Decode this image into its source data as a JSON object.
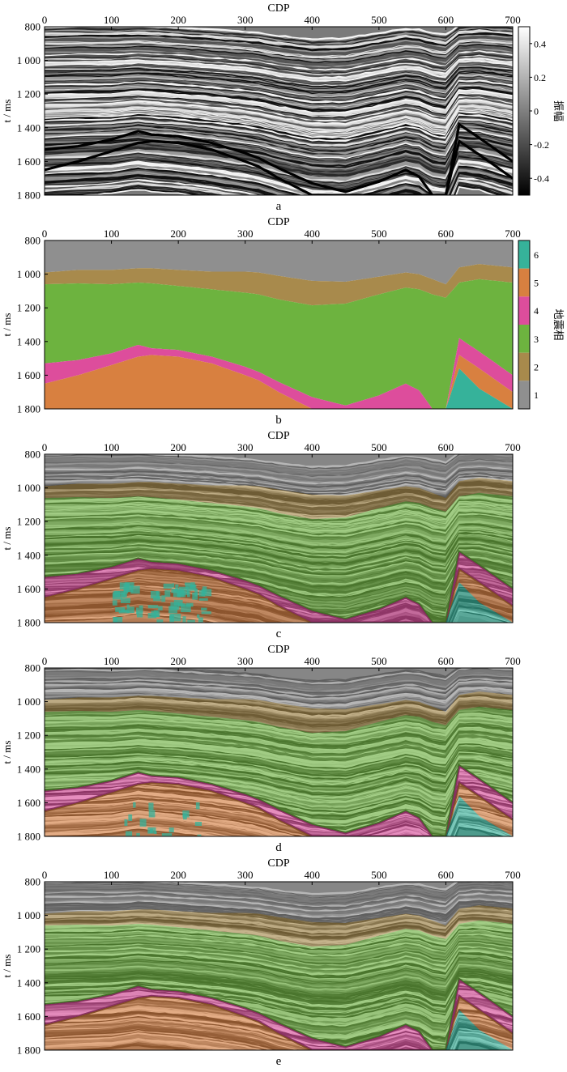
{
  "chart_data": [
    {
      "id": "a",
      "type": "heatmap",
      "kind": "seismic",
      "xlabel": "CDP",
      "ylabel": "t / ms",
      "caption": "a",
      "xlim": [
        0,
        700
      ],
      "ylim": [
        800,
        1800
      ],
      "xticks": [
        "0",
        "100",
        "200",
        "300",
        "400",
        "500",
        "600",
        "700"
      ],
      "yticks": [
        "800",
        "1 000",
        "1 200",
        "1 400",
        "1 600",
        "1 800"
      ],
      "colorbar": {
        "label": "振幅",
        "range": [
          -0.5,
          0.5
        ],
        "ticks": [
          "0.4",
          "0.2",
          "0",
          "-0.2",
          "-0.4"
        ]
      }
    },
    {
      "id": "b",
      "type": "heatmap",
      "kind": "facies",
      "xlabel": "CDP",
      "ylabel": "t / ms",
      "caption": "b",
      "xlim": [
        0,
        700
      ],
      "ylim": [
        800,
        1800
      ],
      "xticks": [
        "0",
        "100",
        "200",
        "300",
        "400",
        "500",
        "600",
        "700"
      ],
      "yticks": [
        "800",
        "1 000",
        "1 200",
        "1 400",
        "1 600",
        "1 800"
      ],
      "colorbar": {
        "label": "地震相",
        "ticks": [
          "6",
          "5",
          "4",
          "3",
          "2",
          "1"
        ]
      }
    },
    {
      "id": "c",
      "type": "heatmap",
      "kind": "overlay",
      "noise": "high",
      "xlabel": "CDP",
      "ylabel": "t / ms",
      "caption": "c",
      "xlim": [
        0,
        700
      ],
      "ylim": [
        800,
        1800
      ],
      "xticks": [
        "0",
        "100",
        "200",
        "300",
        "400",
        "500",
        "600",
        "700"
      ],
      "yticks": [
        "800",
        "1 000",
        "1 200",
        "1 400",
        "1 600",
        "1 800"
      ]
    },
    {
      "id": "d",
      "type": "heatmap",
      "kind": "overlay",
      "noise": "low",
      "xlabel": "CDP",
      "ylabel": "t / ms",
      "caption": "d",
      "xlim": [
        0,
        700
      ],
      "ylim": [
        800,
        1800
      ],
      "xticks": [
        "0",
        "100",
        "200",
        "300",
        "400",
        "500",
        "600",
        "700"
      ],
      "yticks": [
        "800",
        "1 000",
        "1 200",
        "1 400",
        "1 600",
        "1 800"
      ]
    },
    {
      "id": "e",
      "type": "heatmap",
      "kind": "overlay",
      "noise": "none",
      "xlabel": "CDP",
      "ylabel": "t / ms",
      "caption": "e",
      "xlim": [
        0,
        700
      ],
      "ylim": [
        800,
        1800
      ],
      "xticks": [
        "0",
        "100",
        "200",
        "300",
        "400",
        "500",
        "600",
        "700"
      ],
      "yticks": [
        "800",
        "1 000",
        "1 200",
        "1 400",
        "1 600",
        "1 800"
      ]
    }
  ],
  "facies_legend": [
    {
      "label": "1",
      "color": "#8f8f8f"
    },
    {
      "label": "2",
      "color": "#a88a4c"
    },
    {
      "label": "3",
      "color": "#6db33f"
    },
    {
      "label": "4",
      "color": "#dd4d9c"
    },
    {
      "label": "5",
      "color": "#d88040"
    },
    {
      "label": "6",
      "color": "#36b29a"
    }
  ],
  "horizons": {
    "cdp": [
      0,
      50,
      100,
      140,
      160,
      200,
      250,
      300,
      320,
      350,
      400,
      450,
      500,
      540,
      560,
      580,
      600,
      620,
      650,
      700
    ],
    "h12": [
      990,
      975,
      975,
      965,
      965,
      975,
      985,
      985,
      990,
      1010,
      1040,
      1045,
      1015,
      990,
      1000,
      1030,
      1060,
      960,
      940,
      960
    ],
    "h23": [
      1060,
      1055,
      1060,
      1050,
      1055,
      1070,
      1090,
      1110,
      1120,
      1150,
      1185,
      1175,
      1120,
      1080,
      1090,
      1120,
      1140,
      1050,
      1030,
      1050
    ],
    "h34": [
      1530,
      1510,
      1470,
      1420,
      1440,
      1450,
      1490,
      1550,
      1580,
      1640,
      1730,
      1780,
      1720,
      1650,
      1690,
      1800,
      1800,
      1380,
      1460,
      1600
    ],
    "h45": [
      1650,
      1600,
      1540,
      1490,
      1480,
      1490,
      1530,
      1600,
      1630,
      1700,
      1800,
      1800,
      1800,
      1800,
      1800,
      1800,
      1800,
      1480,
      1560,
      1700
    ],
    "h56": [
      1800,
      1800,
      1800,
      1800,
      1800,
      1800,
      1800,
      1800,
      1800,
      1800,
      1800,
      1800,
      1800,
      1800,
      1800,
      1800,
      1800,
      1560,
      1680,
      1800
    ]
  }
}
